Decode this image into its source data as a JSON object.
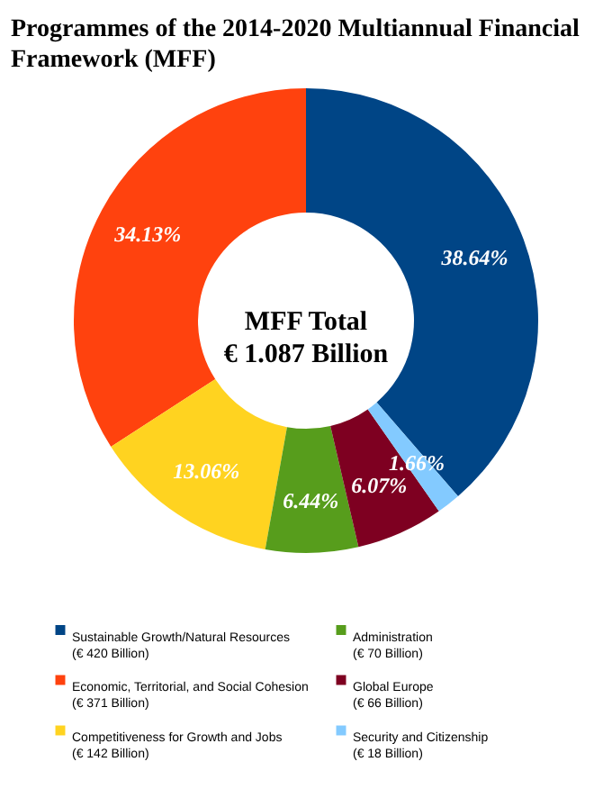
{
  "chart_data": {
    "type": "donut",
    "title": "Programmes of the 2014-2020 Multiannual Financial Framework (MFF)",
    "categories": [
      "Sustainable Growth/Natural Resources (€ 420 Billion)",
      "Economic, Territorial, and Social Cohesion (€ 371 Billion)",
      "Competitiveness for Growth and Jobs (€ 142 Billion)",
      "Administration (€ 70 Billion)",
      "Global Europe (€ 66 Billion)",
      "Security and Citizenship (€ 18 Billion)"
    ],
    "values": [
      38.64,
      34.13,
      13.06,
      6.44,
      6.07,
      1.66
    ],
    "colors": [
      "#004586",
      "#ff420e",
      "#ffd320",
      "#579d1c",
      "#7e0021",
      "#83caff"
    ],
    "value_labels": [
      "38.64%",
      "34.13%",
      "13.06%",
      "6.44%",
      "6.07%",
      "1.66%"
    ],
    "annotations": [
      "MFF Total",
      "€ 1.087 Billion"
    ],
    "legend": "bottom"
  }
}
